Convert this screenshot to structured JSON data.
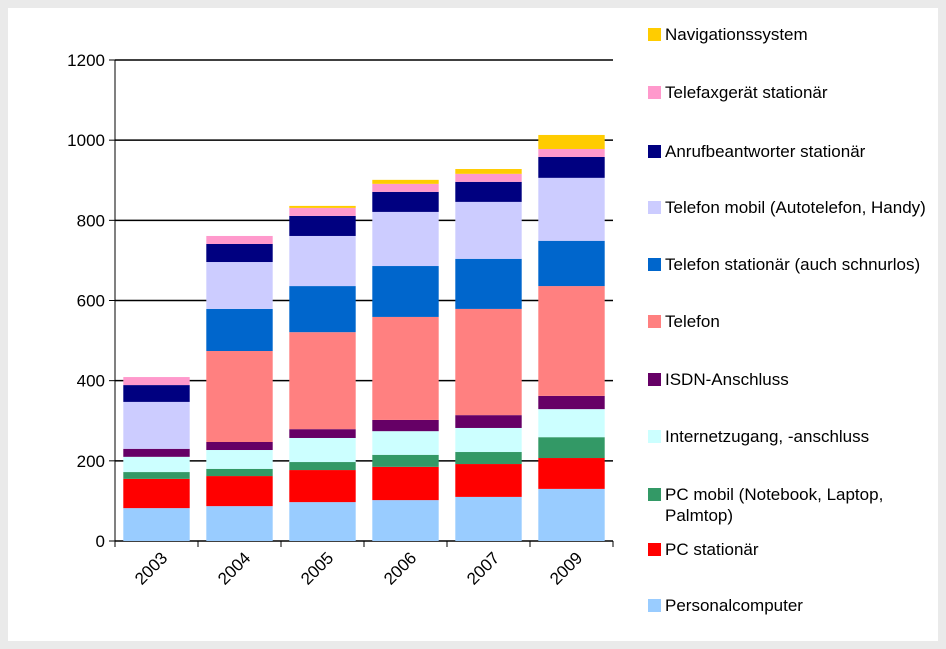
{
  "chart_data": {
    "type": "stacked-bar",
    "categories": [
      "2003",
      "2004",
      "2005",
      "2006",
      "2007",
      "2009"
    ],
    "ylim": [
      0,
      1200
    ],
    "yticks": [
      0,
      200,
      400,
      600,
      800,
      1000,
      1200
    ],
    "grid": true,
    "series": [
      {
        "name": "Personalcomputer",
        "color": "#99ccff",
        "values": [
          82,
          87,
          97,
          102,
          110,
          130
        ]
      },
      {
        "name": "PC stationär",
        "color": "#ff0000",
        "values": [
          73,
          75,
          80,
          83,
          82,
          77
        ]
      },
      {
        "name": "PC mobil (Notebook, Laptop, Palmtop)",
        "color": "#339966",
        "values": [
          17,
          18,
          20,
          30,
          30,
          52
        ]
      },
      {
        "name": "Internetzugang, -anschluss",
        "color": "#ccffff",
        "values": [
          38,
          47,
          60,
          59,
          60,
          70
        ]
      },
      {
        "name": "ISDN-Anschluss",
        "color": "#660066",
        "values": [
          20,
          20,
          22,
          28,
          32,
          33
        ]
      },
      {
        "name": "Telefon",
        "color": "#ff8080",
        "values": [
          0,
          227,
          242,
          257,
          265,
          274
        ]
      },
      {
        "name": "Telefon stationär (auch schnurlos)",
        "color": "#0066cc",
        "values": [
          0,
          105,
          115,
          127,
          125,
          113
        ]
      },
      {
        "name": "Telefon mobil (Autotelefon, Handy)",
        "color": "#ccccff",
        "values": [
          117,
          117,
          125,
          135,
          142,
          157
        ]
      },
      {
        "name": "Anrufbeantworter stationär",
        "color": "#000080",
        "values": [
          42,
          45,
          50,
          50,
          50,
          52
        ]
      },
      {
        "name": "Telefaxgerät stationär",
        "color": "#ff99cc",
        "values": [
          20,
          20,
          20,
          20,
          20,
          20
        ]
      },
      {
        "name": "Navigationssystem",
        "color": "#ffcc00",
        "values": [
          0,
          0,
          5,
          10,
          12,
          35
        ]
      }
    ]
  }
}
